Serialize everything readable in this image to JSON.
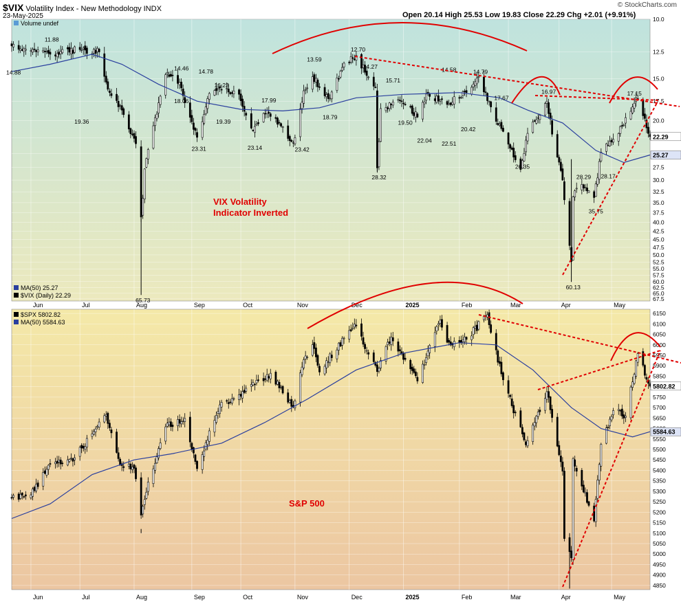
{
  "header": {
    "symbol": "$VIX",
    "name": "Volatility Index - New Methodology INDX",
    "date": "23-May-2025",
    "ohlc": "Open 20.14  High 25.53  Low 19.83  Close 22.29  Chg +2.01 (+9.91%)",
    "watermark": "© StockCharts.com"
  },
  "colors": {
    "candle": "#000000",
    "ma": "#2a3f9e",
    "annotation": "#e00000",
    "vix_bg_top": "#bfe3de",
    "vix_bg_bottom": "#ece9bd",
    "spx_bg_top": "#f4e9a8",
    "spx_bg_bottom": "#ecc6a2"
  },
  "x_axis": {
    "months": [
      {
        "label": "Jun",
        "date": "2024-06-03"
      },
      {
        "label": "Jul",
        "date": "2024-07-01"
      },
      {
        "label": "Aug",
        "date": "2024-08-01"
      },
      {
        "label": "Sep",
        "date": "2024-09-03"
      },
      {
        "label": "Oct",
        "date": "2024-10-01"
      },
      {
        "label": "Nov",
        "date": "2024-11-01"
      },
      {
        "label": "Dec",
        "date": "2024-12-02"
      },
      {
        "label": "2025",
        "date": "2025-01-02"
      },
      {
        "label": "Feb",
        "date": "2025-02-03"
      },
      {
        "label": "Mar",
        "date": "2025-03-03"
      },
      {
        "label": "Apr",
        "date": "2025-04-01"
      },
      {
        "label": "May",
        "date": "2025-05-01"
      }
    ],
    "start": "2024-05-23",
    "end": "2025-05-23"
  },
  "chart_data": [
    {
      "type": "candlestick",
      "title": "$VIX Volatility Index - New Methodology INDX",
      "scale": "log-inverted",
      "yticks": [
        10.0,
        12.5,
        15.0,
        17.5,
        20.0,
        22.5,
        25.0,
        27.5,
        30.0,
        32.5,
        35.0,
        37.5,
        40.0,
        42.5,
        45.0,
        47.5,
        50.0,
        52.5,
        55.0,
        57.5,
        60.0,
        62.5,
        65.0,
        67.5
      ],
      "ylim": [
        10.0,
        68.5
      ],
      "legend": [
        {
          "label": "Volume undef"
        },
        {
          "label": "MA(50) 25.27"
        },
        {
          "label": "$VIX (Daily) 22.29"
        }
      ],
      "last_close": "22.29",
      "ma_last": "25.27",
      "labels": [
        {
          "text": "11.88",
          "date": "2024-06-14",
          "value": 11.88
        },
        {
          "text": "14.88",
          "date": "2024-05-23",
          "value": 14.88
        },
        {
          "text": "14.46",
          "date": "2024-08-27",
          "value": 14.46
        },
        {
          "text": "14.78",
          "date": "2024-09-10",
          "value": 14.78
        },
        {
          "text": "16.23",
          "date": "2024-09-19",
          "value": 16.23
        },
        {
          "text": "17.99",
          "date": "2024-10-16",
          "value": 17.99
        },
        {
          "text": "13.59",
          "date": "2024-11-11",
          "value": 13.59
        },
        {
          "text": "12.70",
          "date": "2024-12-06",
          "value": 12.7
        },
        {
          "text": "14.27",
          "date": "2024-12-13",
          "value": 14.27
        },
        {
          "text": "15.71",
          "date": "2024-12-26",
          "value": 15.71
        },
        {
          "text": "14.58",
          "date": "2025-01-27",
          "value": 14.58
        },
        {
          "text": "14.79",
          "date": "2025-02-14",
          "value": 14.79
        },
        {
          "text": "17.67",
          "date": "2025-02-26",
          "value": 17.67
        },
        {
          "text": "16.97",
          "date": "2025-03-25",
          "value": 16.97
        },
        {
          "text": "17.15",
          "date": "2025-05-13",
          "value": 17.15
        },
        {
          "text": "19.36",
          "date": "2024-07-01",
          "value": 19.36
        },
        {
          "text": "18.06",
          "date": "2024-08-27",
          "value": 18.06
        },
        {
          "text": "19.39",
          "date": "2024-09-20",
          "value": 19.39
        },
        {
          "text": "23.31",
          "date": "2024-09-06",
          "value": 23.31
        },
        {
          "text": "23.14",
          "date": "2024-10-08",
          "value": 23.14
        },
        {
          "text": "23.42",
          "date": "2024-11-04",
          "value": 23.42
        },
        {
          "text": "18.79",
          "date": "2024-11-20",
          "value": 18.79
        },
        {
          "text": "28.32",
          "date": "2024-12-18",
          "value": 28.32
        },
        {
          "text": "19.50",
          "date": "2025-01-02",
          "value": 19.5
        },
        {
          "text": "22.04",
          "date": "2025-01-13",
          "value": 22.04
        },
        {
          "text": "22.51",
          "date": "2025-01-27",
          "value": 22.51
        },
        {
          "text": "20.42",
          "date": "2025-02-07",
          "value": 20.42
        },
        {
          "text": "26.35",
          "date": "2025-03-10",
          "value": 26.35
        },
        {
          "text": "28.29",
          "date": "2025-04-14",
          "value": 28.29
        },
        {
          "text": "28.17",
          "date": "2025-04-28",
          "value": 28.17
        },
        {
          "text": "35.75",
          "date": "2025-04-21",
          "value": 35.75
        },
        {
          "text": "60.13",
          "date": "2025-04-08",
          "value": 60.13
        },
        {
          "text": "65.73",
          "date": "2024-08-05",
          "value": 65.73
        }
      ],
      "annotation": "VIX Volatility\nIndicator Inverted",
      "anchors": [
        {
          "date": "2024-05-23",
          "close": 12.0
        },
        {
          "date": "2024-06-14",
          "close": 12.7
        },
        {
          "date": "2024-07-01",
          "close": 12.3
        },
        {
          "date": "2024-07-12",
          "close": 12.5
        },
        {
          "date": "2024-07-18",
          "close": 16.5
        },
        {
          "date": "2024-07-24",
          "close": 18.0
        },
        {
          "date": "2024-08-02",
          "close": 23.4
        },
        {
          "date": "2024-08-05",
          "close": 38.6
        },
        {
          "date": "2024-08-07",
          "close": 27.8
        },
        {
          "date": "2024-08-12",
          "close": 20.7
        },
        {
          "date": "2024-08-19",
          "close": 14.6
        },
        {
          "date": "2024-08-27",
          "close": 15.4
        },
        {
          "date": "2024-09-06",
          "close": 22.4
        },
        {
          "date": "2024-09-13",
          "close": 16.6
        },
        {
          "date": "2024-09-20",
          "close": 16.2
        },
        {
          "date": "2024-09-30",
          "close": 16.7
        },
        {
          "date": "2024-10-08",
          "close": 21.4
        },
        {
          "date": "2024-10-16",
          "close": 18.6
        },
        {
          "date": "2024-10-31",
          "close": 23.2
        },
        {
          "date": "2024-11-06",
          "close": 16.3
        },
        {
          "date": "2024-11-11",
          "close": 14.8
        },
        {
          "date": "2024-11-20",
          "close": 17.2
        },
        {
          "date": "2024-11-29",
          "close": 13.5
        },
        {
          "date": "2024-12-06",
          "close": 12.8
        },
        {
          "date": "2024-12-17",
          "close": 15.9
        },
        {
          "date": "2024-12-18",
          "close": 27.6
        },
        {
          "date": "2024-12-20",
          "close": 18.4
        },
        {
          "date": "2024-12-31",
          "close": 17.4
        },
        {
          "date": "2025-01-10",
          "close": 19.5
        },
        {
          "date": "2025-01-16",
          "close": 16.6
        },
        {
          "date": "2025-01-27",
          "close": 17.9
        },
        {
          "date": "2025-02-07",
          "close": 16.5
        },
        {
          "date": "2025-02-14",
          "close": 14.8
        },
        {
          "date": "2025-02-21",
          "close": 18.2
        },
        {
          "date": "2025-02-27",
          "close": 21.1
        },
        {
          "date": "2025-03-10",
          "close": 27.9
        },
        {
          "date": "2025-03-14",
          "close": 21.8
        },
        {
          "date": "2025-03-25",
          "close": 17.5
        },
        {
          "date": "2025-04-03",
          "close": 30.0
        },
        {
          "date": "2025-04-07",
          "close": 46.9
        },
        {
          "date": "2025-04-08",
          "close": 52.3
        },
        {
          "date": "2025-04-09",
          "close": 33.6
        },
        {
          "date": "2025-04-14",
          "close": 30.9
        },
        {
          "date": "2025-04-21",
          "close": 33.8
        },
        {
          "date": "2025-04-25",
          "close": 24.8
        },
        {
          "date": "2025-05-02",
          "close": 22.7
        },
        {
          "date": "2025-05-13",
          "close": 18.2
        },
        {
          "date": "2025-05-16",
          "close": 17.2
        },
        {
          "date": "2025-05-23",
          "close": 22.29
        }
      ],
      "ma50": [
        {
          "date": "2024-05-23",
          "value": 14.3
        },
        {
          "date": "2024-06-14",
          "value": 13.6
        },
        {
          "date": "2024-07-08",
          "value": 12.7
        },
        {
          "date": "2024-07-25",
          "value": 13.6
        },
        {
          "date": "2024-08-15",
          "value": 15.6
        },
        {
          "date": "2024-09-06",
          "value": 17.5
        },
        {
          "date": "2024-10-01",
          "value": 18.5
        },
        {
          "date": "2024-10-25",
          "value": 18.7
        },
        {
          "date": "2024-11-15",
          "value": 18.3
        },
        {
          "date": "2024-12-06",
          "value": 17.1
        },
        {
          "date": "2025-01-02",
          "value": 16.7
        },
        {
          "date": "2025-02-03",
          "value": 16.5
        },
        {
          "date": "2025-02-26",
          "value": 17.1
        },
        {
          "date": "2025-03-14",
          "value": 18.6
        },
        {
          "date": "2025-04-03",
          "value": 20.3
        },
        {
          "date": "2025-04-22",
          "value": 24.5
        },
        {
          "date": "2025-05-08",
          "value": 26.6
        },
        {
          "date": "2025-05-23",
          "value": 25.27
        }
      ]
    },
    {
      "type": "candlestick",
      "title": "$SPX",
      "scale": "linear",
      "yticks": [
        4850,
        4900,
        4950,
        5000,
        5050,
        5100,
        5150,
        5200,
        5250,
        5300,
        5350,
        5400,
        5450,
        5500,
        5550,
        5600,
        5650,
        5700,
        5750,
        5800,
        5850,
        5900,
        5950,
        6000,
        6050,
        6100,
        6150
      ],
      "ylim": [
        4830,
        6170
      ],
      "legend": [
        {
          "label": "$SPX 5802.82"
        },
        {
          "label": "MA(50) 5584.63"
        }
      ],
      "last_close": "5802.82",
      "ma_last": "5584.63",
      "annotation": "S&P 500",
      "anchors": [
        {
          "date": "2024-05-23",
          "close": 5267
        },
        {
          "date": "2024-06-03",
          "close": 5283
        },
        {
          "date": "2024-06-14",
          "close": 5431
        },
        {
          "date": "2024-06-28",
          "close": 5460
        },
        {
          "date": "2024-07-16",
          "close": 5667
        },
        {
          "date": "2024-07-24",
          "close": 5427
        },
        {
          "date": "2024-08-01",
          "close": 5410
        },
        {
          "date": "2024-08-05",
          "close": 5186
        },
        {
          "date": "2024-08-09",
          "close": 5344
        },
        {
          "date": "2024-08-19",
          "close": 5608
        },
        {
          "date": "2024-08-30",
          "close": 5648
        },
        {
          "date": "2024-09-06",
          "close": 5408
        },
        {
          "date": "2024-09-19",
          "close": 5713
        },
        {
          "date": "2024-09-30",
          "close": 5762
        },
        {
          "date": "2024-10-18",
          "close": 5864
        },
        {
          "date": "2024-10-31",
          "close": 5705
        },
        {
          "date": "2024-11-06",
          "close": 5929
        },
        {
          "date": "2024-11-11",
          "close": 6001
        },
        {
          "date": "2024-11-15",
          "close": 5870
        },
        {
          "date": "2024-11-29",
          "close": 6032
        },
        {
          "date": "2024-12-06",
          "close": 6090
        },
        {
          "date": "2024-12-18",
          "close": 5872
        },
        {
          "date": "2024-12-26",
          "close": 6037
        },
        {
          "date": "2025-01-10",
          "close": 5827
        },
        {
          "date": "2025-01-23",
          "close": 6118
        },
        {
          "date": "2025-01-27",
          "close": 6012
        },
        {
          "date": "2025-02-07",
          "close": 6026
        },
        {
          "date": "2025-02-19",
          "close": 6144
        },
        {
          "date": "2025-02-27",
          "close": 5861
        },
        {
          "date": "2025-03-13",
          "close": 5522
        },
        {
          "date": "2025-03-25",
          "close": 5776
        },
        {
          "date": "2025-04-03",
          "close": 5396
        },
        {
          "date": "2025-04-04",
          "close": 5074
        },
        {
          "date": "2025-04-08",
          "close": 4982
        },
        {
          "date": "2025-04-09",
          "close": 5456
        },
        {
          "date": "2025-04-21",
          "close": 5158
        },
        {
          "date": "2025-04-25",
          "close": 5525
        },
        {
          "date": "2025-05-02",
          "close": 5686
        },
        {
          "date": "2025-05-09",
          "close": 5660
        },
        {
          "date": "2025-05-16",
          "close": 5958
        },
        {
          "date": "2025-05-23",
          "close": 5802.82
        }
      ],
      "ma50": [
        {
          "date": "2024-05-23",
          "value": 5170
        },
        {
          "date": "2024-06-14",
          "value": 5240
        },
        {
          "date": "2024-07-08",
          "value": 5380
        },
        {
          "date": "2024-08-01",
          "value": 5450
        },
        {
          "date": "2024-08-23",
          "value": 5480
        },
        {
          "date": "2024-09-20",
          "value": 5530
        },
        {
          "date": "2024-10-15",
          "value": 5630
        },
        {
          "date": "2024-11-08",
          "value": 5740
        },
        {
          "date": "2024-12-06",
          "value": 5880
        },
        {
          "date": "2025-01-02",
          "value": 5960
        },
        {
          "date": "2025-02-03",
          "value": 6010
        },
        {
          "date": "2025-02-24",
          "value": 6000
        },
        {
          "date": "2025-03-17",
          "value": 5880
        },
        {
          "date": "2025-04-08",
          "value": 5700
        },
        {
          "date": "2025-04-25",
          "value": 5600
        },
        {
          "date": "2025-05-13",
          "value": 5560
        },
        {
          "date": "2025-05-23",
          "value": 5584.63
        }
      ]
    }
  ]
}
